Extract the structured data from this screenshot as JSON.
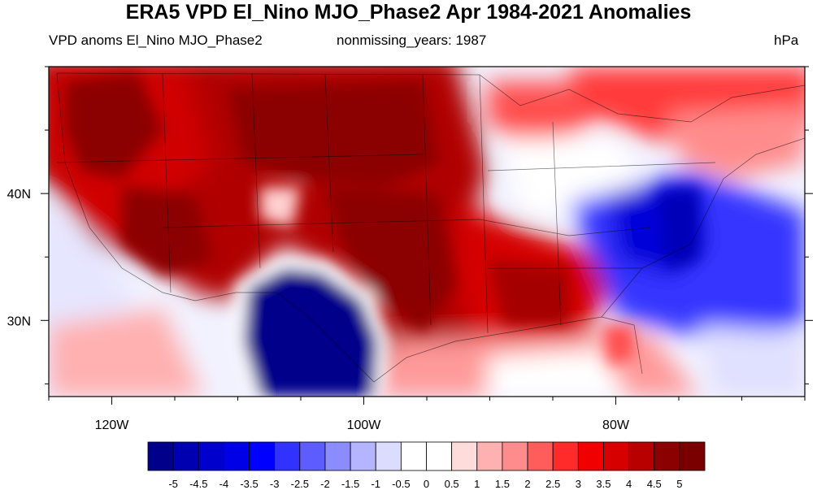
{
  "title": "ERA5 VPD El_Nino MJO_Phase2 Apr 1984-2021 Anomalies",
  "subtitle_left": "VPD anoms El_Nino MJO_Phase2",
  "subtitle_center": "nonmissing_years: 1987",
  "units": "hPa",
  "map": {
    "lon_range": [
      -125,
      -65
    ],
    "lat_range": [
      24,
      50
    ],
    "lon_ticks": [
      {
        "lon": -120,
        "label": "120W"
      },
      {
        "lon": -100,
        "label": "100W"
      },
      {
        "lon": -80,
        "label": "80W"
      }
    ],
    "lat_ticks": [
      {
        "lat": 40,
        "label": "40N"
      },
      {
        "lat": 30,
        "label": "30N"
      }
    ]
  },
  "colorbar": {
    "labels": [
      "-5",
      "-4.5",
      "-4",
      "-3.5",
      "-3",
      "-2.5",
      "-2",
      "-1.5",
      "-1",
      "-0.5",
      "0",
      "0.5",
      "1",
      "1.5",
      "2",
      "2.5",
      "3",
      "3.5",
      "4",
      "4.5",
      "5"
    ],
    "colors": [
      "#00008b",
      "#0000b0",
      "#0000cd",
      "#0000e6",
      "#0000ff",
      "#3232ff",
      "#5c5cff",
      "#8c8cff",
      "#b4b4ff",
      "#dcdcff",
      "#ffffff",
      "#ffffff",
      "#ffdcdc",
      "#ffb0b0",
      "#ff8c8c",
      "#ff5c5c",
      "#ff2a2a",
      "#f00000",
      "#d70000",
      "#b90000",
      "#8b0000",
      "#7a0000"
    ]
  }
}
